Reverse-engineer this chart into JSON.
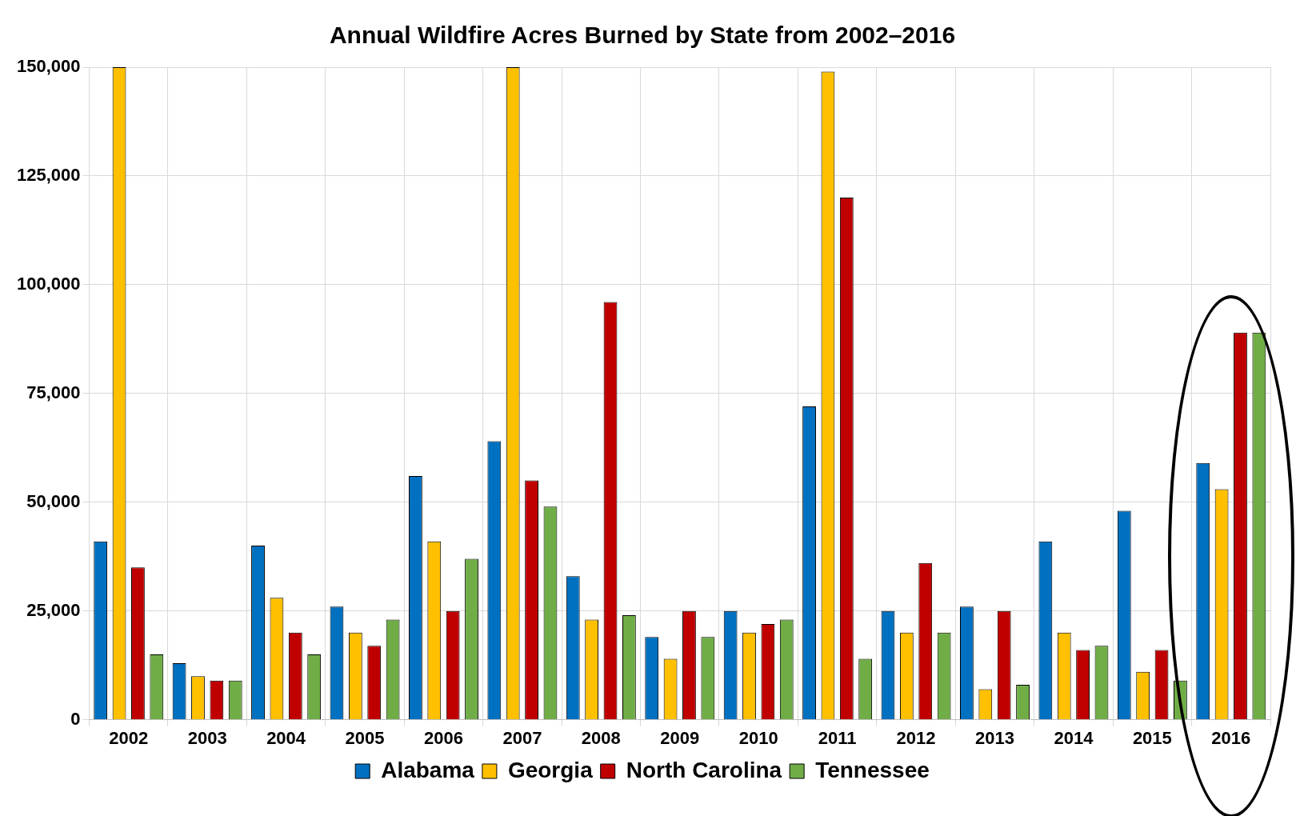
{
  "chart_data": {
    "type": "bar",
    "title": "Annual Wildfire Acres Burned by State from 2002–2016",
    "categories": [
      "2002",
      "2003",
      "2004",
      "2005",
      "2006",
      "2007",
      "2008",
      "2009",
      "2010",
      "2011",
      "2012",
      "2013",
      "2014",
      "2015",
      "2016"
    ],
    "series": [
      {
        "name": "Alabama",
        "color": "#0070c0",
        "values": [
          41000,
          13000,
          40000,
          26000,
          56000,
          64000,
          33000,
          19000,
          25000,
          72000,
          25000,
          26000,
          41000,
          48000,
          59000
        ]
      },
      {
        "name": "Georgia",
        "color": "#ffc000",
        "values": [
          150000,
          10000,
          28000,
          20000,
          41000,
          150000,
          23000,
          14000,
          20000,
          149000,
          20000,
          7000,
          20000,
          11000,
          53000
        ]
      },
      {
        "name": "North Carolina",
        "color": "#c00000",
        "values": [
          35000,
          9000,
          20000,
          17000,
          25000,
          55000,
          96000,
          25000,
          22000,
          120000,
          36000,
          25000,
          16000,
          16000,
          89000
        ]
      },
      {
        "name": "Tennessee",
        "color": "#70ad47",
        "values": [
          15000,
          9000,
          15000,
          23000,
          37000,
          49000,
          24000,
          19000,
          23000,
          14000,
          20000,
          8000,
          17000,
          9000,
          89000
        ]
      }
    ],
    "ylim": [
      0,
      150000
    ],
    "yticks": [
      0,
      {
        "value": 25000,
        "label": "25,000"
      },
      {
        "value": 50000,
        "label": "50,000"
      },
      {
        "value": 75000,
        "label": "75,000"
      },
      {
        "value": 100000,
        "label": "100,000"
      },
      {
        "value": 125000,
        "label": "125,000"
      },
      {
        "value": 150000,
        "label": "150,000"
      }
    ],
    "grid": true,
    "legend": "bottom"
  }
}
